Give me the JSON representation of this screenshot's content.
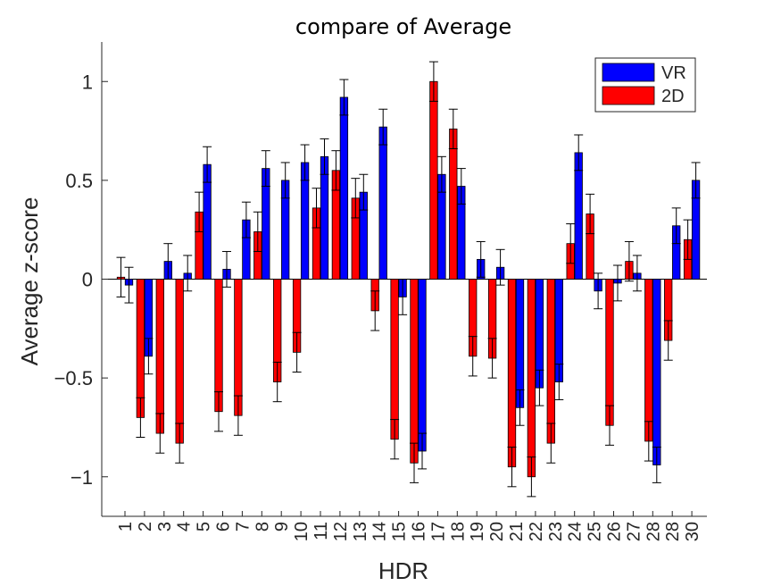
{
  "chart_data": {
    "type": "bar",
    "title": "compare of Average",
    "xlabel": "HDR",
    "ylabel": "Average z-score",
    "ylim": [
      -1.2,
      1.2
    ],
    "yticks": [
      -1,
      -0.5,
      0,
      0.5,
      1
    ],
    "ytick_labels": [
      "−1",
      "−0.5",
      "0",
      "0.5",
      "1"
    ],
    "categories": [
      "1",
      "2",
      "3",
      "4",
      "5",
      "6",
      "7",
      "8",
      "9",
      "10",
      "11",
      "12",
      "13",
      "14",
      "15",
      "16",
      "17",
      "18",
      "19",
      "20",
      "21",
      "22",
      "23",
      "24",
      "25",
      "26",
      "27",
      "28",
      "28",
      "30"
    ],
    "legend_position": "top-right",
    "grid": false,
    "series": [
      {
        "name": "VR",
        "color": "#0000ff",
        "values": [
          -0.03,
          -0.39,
          0.09,
          0.03,
          0.58,
          0.05,
          0.3,
          0.56,
          0.5,
          0.59,
          0.62,
          0.92,
          0.44,
          0.77,
          -0.09,
          -0.87,
          0.53,
          0.47,
          0.1,
          0.06,
          -0.65,
          -0.55,
          -0.52,
          0.64,
          -0.06,
          -0.02,
          0.03,
          -0.94,
          0.27,
          0.5
        ],
        "errors": [
          0.09,
          0.09,
          0.09,
          0.09,
          0.09,
          0.09,
          0.09,
          0.09,
          0.09,
          0.09,
          0.09,
          0.09,
          0.09,
          0.09,
          0.09,
          0.09,
          0.09,
          0.09,
          0.09,
          0.09,
          0.09,
          0.09,
          0.09,
          0.09,
          0.09,
          0.09,
          0.09,
          0.09,
          0.09,
          0.09
        ]
      },
      {
        "name": "2D",
        "color": "#ff0000",
        "values": [
          0.01,
          -0.7,
          -0.78,
          -0.83,
          0.34,
          -0.67,
          -0.69,
          0.24,
          -0.52,
          -0.37,
          0.36,
          0.55,
          0.41,
          -0.16,
          -0.81,
          -0.93,
          1.0,
          0.76,
          -0.39,
          -0.4,
          -0.95,
          -1.0,
          -0.83,
          0.18,
          0.33,
          -0.74,
          0.09,
          -0.82,
          -0.31,
          0.2
        ],
        "errors": [
          0.1,
          0.1,
          0.1,
          0.1,
          0.1,
          0.1,
          0.1,
          0.1,
          0.1,
          0.1,
          0.1,
          0.1,
          0.1,
          0.1,
          0.1,
          0.1,
          0.1,
          0.1,
          0.1,
          0.1,
          0.1,
          0.1,
          0.1,
          0.1,
          0.1,
          0.1,
          0.1,
          0.1,
          0.1,
          0.1
        ]
      }
    ]
  }
}
